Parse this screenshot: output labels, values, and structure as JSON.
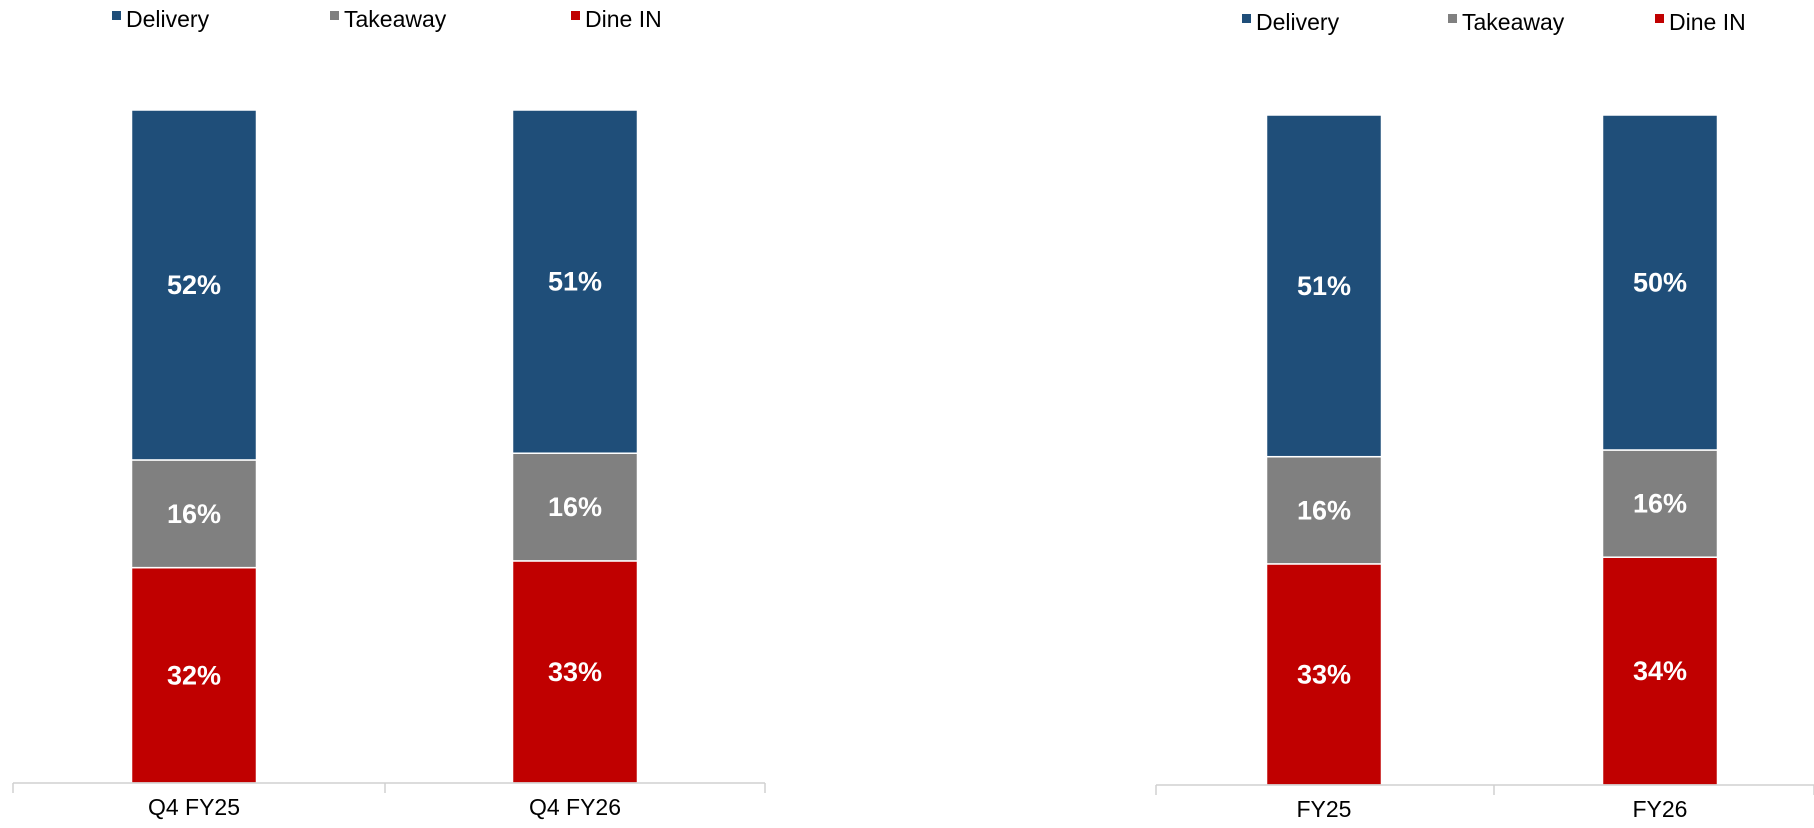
{
  "chart_data": [
    {
      "type": "bar",
      "stacked": true,
      "percent": true,
      "legend": "top",
      "grid": false,
      "ylim": [
        0,
        100
      ],
      "categories": [
        "Q4 FY25",
        "Q4 FY26"
      ],
      "series": [
        {
          "name": "Dine IN",
          "color": "#c00000",
          "values": [
            32,
            33
          ],
          "labels": [
            "32%",
            "33%"
          ]
        },
        {
          "name": "Takeaway",
          "color": "#808080",
          "values": [
            16,
            16
          ],
          "labels": [
            "16%",
            "16%"
          ]
        },
        {
          "name": "Delivery",
          "color": "#1f4e79",
          "values": [
            52,
            51
          ],
          "labels": [
            "52%",
            "51%"
          ]
        }
      ],
      "legend_order": [
        "Delivery",
        "Takeaway",
        "Dine IN"
      ]
    },
    {
      "type": "bar",
      "stacked": true,
      "percent": true,
      "legend": "top",
      "grid": false,
      "ylim": [
        0,
        100
      ],
      "categories": [
        "FY25",
        "FY26"
      ],
      "series": [
        {
          "name": "Dine IN",
          "color": "#c00000",
          "values": [
            33,
            34
          ],
          "labels": [
            "33%",
            "34%"
          ]
        },
        {
          "name": "Takeaway",
          "color": "#808080",
          "values": [
            16,
            16
          ],
          "labels": [
            "16%",
            "16%"
          ]
        },
        {
          "name": "Delivery",
          "color": "#1f4e79",
          "values": [
            51,
            50
          ],
          "labels": [
            "51%",
            "50%"
          ]
        }
      ],
      "legend_order": [
        "Delivery",
        "Takeaway",
        "Dine IN"
      ]
    }
  ]
}
